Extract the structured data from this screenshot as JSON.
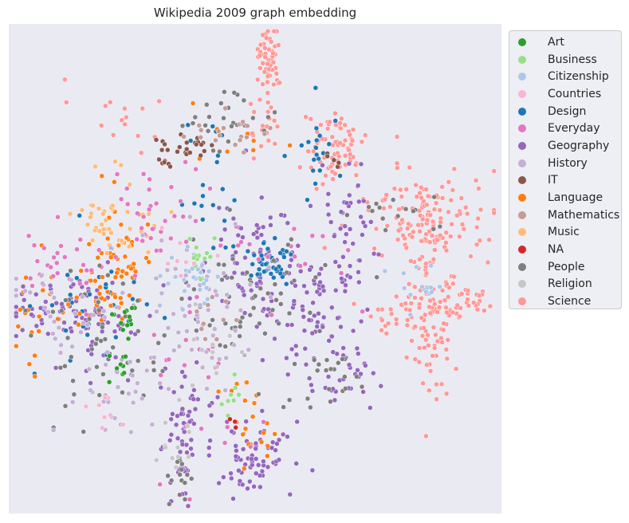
{
  "chart_data": {
    "type": "scatter",
    "title": "Wikipedia 2009 graph embedding",
    "xlabel": "",
    "ylabel": "",
    "grid": false,
    "axes_visible": false,
    "background_color": "#eaeaf2",
    "legend_placement": "outside-right",
    "point_edge_color": "#ffffff",
    "categories": [
      {
        "name": "Art",
        "color": "#2ca02c"
      },
      {
        "name": "Business",
        "color": "#98df8a"
      },
      {
        "name": "Citizenship",
        "color": "#aec7e8"
      },
      {
        "name": "Countries",
        "color": "#f7b6d2"
      },
      {
        "name": "Design",
        "color": "#1f77b4"
      },
      {
        "name": "Everyday",
        "color": "#e377c2"
      },
      {
        "name": "Geography",
        "color": "#9467bd"
      },
      {
        "name": "History",
        "color": "#c5b0d5"
      },
      {
        "name": "IT",
        "color": "#8c564b"
      },
      {
        "name": "Language",
        "color": "#ff7f0e"
      },
      {
        "name": "Mathematics",
        "color": "#c49c94"
      },
      {
        "name": "Music",
        "color": "#ffbb78"
      },
      {
        "name": "NA",
        "color": "#d62728"
      },
      {
        "name": "People",
        "color": "#7f7f7f"
      },
      {
        "name": "Religion",
        "color": "#c7c7c7"
      },
      {
        "name": "Science",
        "color": "#ff9896"
      }
    ],
    "clusters": [
      {
        "category": "Science",
        "x": 0.53,
        "y": 0.07,
        "sx": 0.012,
        "sy": 0.035,
        "n": 55
      },
      {
        "category": "Science",
        "x": 0.51,
        "y": 0.2,
        "sx": 0.02,
        "sy": 0.03,
        "n": 20
      },
      {
        "category": "Science",
        "x": 0.66,
        "y": 0.25,
        "sx": 0.03,
        "sy": 0.04,
        "n": 70
      },
      {
        "category": "Science",
        "x": 0.85,
        "y": 0.4,
        "sx": 0.06,
        "sy": 0.05,
        "n": 130
      },
      {
        "category": "Science",
        "x": 0.86,
        "y": 0.58,
        "sx": 0.03,
        "sy": 0.08,
        "n": 110
      },
      {
        "category": "Science",
        "x": 0.93,
        "y": 0.56,
        "sx": 0.03,
        "sy": 0.02,
        "n": 25
      },
      {
        "category": "Science",
        "x": 0.78,
        "y": 0.59,
        "sx": 0.03,
        "sy": 0.02,
        "n": 25
      },
      {
        "category": "Science",
        "x": 0.25,
        "y": 0.19,
        "sx": 0.06,
        "sy": 0.03,
        "n": 15
      },
      {
        "category": "Geography",
        "x": 0.51,
        "y": 0.5,
        "sx": 0.05,
        "sy": 0.06,
        "n": 80
      },
      {
        "category": "Geography",
        "x": 0.49,
        "y": 0.88,
        "sx": 0.04,
        "sy": 0.04,
        "n": 70
      },
      {
        "category": "Geography",
        "x": 0.36,
        "y": 0.8,
        "sx": 0.03,
        "sy": 0.06,
        "n": 50
      },
      {
        "category": "Geography",
        "x": 0.62,
        "y": 0.6,
        "sx": 0.04,
        "sy": 0.08,
        "n": 70
      },
      {
        "category": "Geography",
        "x": 0.68,
        "y": 0.44,
        "sx": 0.03,
        "sy": 0.08,
        "n": 50
      },
      {
        "category": "Geography",
        "x": 0.09,
        "y": 0.58,
        "sx": 0.05,
        "sy": 0.03,
        "n": 60
      },
      {
        "category": "Geography",
        "x": 0.35,
        "y": 0.92,
        "sx": 0.01,
        "sy": 0.04,
        "n": 15
      },
      {
        "category": "Geography",
        "x": 0.7,
        "y": 0.72,
        "sx": 0.04,
        "sy": 0.03,
        "n": 25
      },
      {
        "category": "Geography",
        "x": 0.2,
        "y": 0.6,
        "sx": 0.05,
        "sy": 0.07,
        "n": 40
      },
      {
        "category": "Design",
        "x": 0.53,
        "y": 0.49,
        "sx": 0.02,
        "sy": 0.02,
        "n": 40
      },
      {
        "category": "Design",
        "x": 0.41,
        "y": 0.34,
        "sx": 0.03,
        "sy": 0.07,
        "n": 20
      },
      {
        "category": "Design",
        "x": 0.62,
        "y": 0.25,
        "sx": 0.02,
        "sy": 0.05,
        "n": 20
      },
      {
        "category": "Design",
        "x": 0.18,
        "y": 0.58,
        "sx": 0.08,
        "sy": 0.06,
        "n": 30
      },
      {
        "category": "Language",
        "x": 0.23,
        "y": 0.48,
        "sx": 0.03,
        "sy": 0.06,
        "n": 45
      },
      {
        "category": "Language",
        "x": 0.18,
        "y": 0.54,
        "sx": 0.04,
        "sy": 0.05,
        "n": 30
      },
      {
        "category": "Language",
        "x": 0.49,
        "y": 0.82,
        "sx": 0.03,
        "sy": 0.04,
        "n": 20
      },
      {
        "category": "Language",
        "x": 0.06,
        "y": 0.6,
        "sx": 0.03,
        "sy": 0.05,
        "n": 15
      },
      {
        "category": "Language",
        "x": 0.45,
        "y": 0.25,
        "sx": 0.06,
        "sy": 0.03,
        "n": 8
      },
      {
        "category": "Music",
        "x": 0.22,
        "y": 0.4,
        "sx": 0.04,
        "sy": 0.05,
        "n": 35
      },
      {
        "category": "Music",
        "x": 0.17,
        "y": 0.4,
        "sx": 0.02,
        "sy": 0.02,
        "n": 10
      },
      {
        "category": "Everyday",
        "x": 0.3,
        "y": 0.38,
        "sx": 0.04,
        "sy": 0.06,
        "n": 35
      },
      {
        "category": "Everyday",
        "x": 0.1,
        "y": 0.49,
        "sx": 0.05,
        "sy": 0.04,
        "n": 30
      },
      {
        "category": "Everyday",
        "x": 0.4,
        "y": 0.7,
        "sx": 0.08,
        "sy": 0.1,
        "n": 25
      },
      {
        "category": "Everyday",
        "x": 0.62,
        "y": 0.45,
        "sx": 0.06,
        "sy": 0.06,
        "n": 15
      },
      {
        "category": "People",
        "x": 0.48,
        "y": 0.55,
        "sx": 0.09,
        "sy": 0.08,
        "n": 60
      },
      {
        "category": "People",
        "x": 0.18,
        "y": 0.65,
        "sx": 0.06,
        "sy": 0.07,
        "n": 50
      },
      {
        "category": "People",
        "x": 0.35,
        "y": 0.93,
        "sx": 0.02,
        "sy": 0.03,
        "n": 15
      },
      {
        "category": "People",
        "x": 0.66,
        "y": 0.73,
        "sx": 0.03,
        "sy": 0.03,
        "n": 20
      },
      {
        "category": "People",
        "x": 0.77,
        "y": 0.39,
        "sx": 0.05,
        "sy": 0.02,
        "n": 15
      },
      {
        "category": "People",
        "x": 0.45,
        "y": 0.2,
        "sx": 0.06,
        "sy": 0.04,
        "n": 25
      },
      {
        "category": "History",
        "x": 0.36,
        "y": 0.58,
        "sx": 0.06,
        "sy": 0.08,
        "n": 60
      },
      {
        "category": "History",
        "x": 0.1,
        "y": 0.57,
        "sx": 0.05,
        "sy": 0.05,
        "n": 30
      },
      {
        "category": "History",
        "x": 0.22,
        "y": 0.75,
        "sx": 0.05,
        "sy": 0.05,
        "n": 30
      },
      {
        "category": "Citizenship",
        "x": 0.38,
        "y": 0.52,
        "sx": 0.03,
        "sy": 0.03,
        "n": 30
      },
      {
        "category": "Citizenship",
        "x": 0.83,
        "y": 0.55,
        "sx": 0.02,
        "sy": 0.03,
        "n": 15
      },
      {
        "category": "IT",
        "x": 0.36,
        "y": 0.25,
        "sx": 0.03,
        "sy": 0.01,
        "n": 22
      },
      {
        "category": "IT",
        "x": 0.32,
        "y": 0.28,
        "sx": 0.01,
        "sy": 0.01,
        "n": 6
      },
      {
        "category": "IT",
        "x": 0.65,
        "y": 0.29,
        "sx": 0.01,
        "sy": 0.02,
        "n": 5
      },
      {
        "category": "Mathematics",
        "x": 0.46,
        "y": 0.22,
        "sx": 0.04,
        "sy": 0.02,
        "n": 20
      },
      {
        "category": "Mathematics",
        "x": 0.43,
        "y": 0.6,
        "sx": 0.03,
        "sy": 0.04,
        "n": 10
      },
      {
        "category": "Art",
        "x": 0.23,
        "y": 0.6,
        "sx": 0.02,
        "sy": 0.02,
        "n": 12
      },
      {
        "category": "Art",
        "x": 0.22,
        "y": 0.7,
        "sx": 0.02,
        "sy": 0.03,
        "n": 10
      },
      {
        "category": "Business",
        "x": 0.39,
        "y": 0.49,
        "sx": 0.02,
        "sy": 0.03,
        "n": 12
      },
      {
        "category": "Business",
        "x": 0.45,
        "y": 0.75,
        "sx": 0.01,
        "sy": 0.03,
        "n": 8
      },
      {
        "category": "NA",
        "x": 0.46,
        "y": 0.82,
        "sx": 0.01,
        "sy": 0.01,
        "n": 3
      },
      {
        "category": "Religion",
        "x": 0.34,
        "y": 0.87,
        "sx": 0.02,
        "sy": 0.04,
        "n": 12
      },
      {
        "category": "Religion",
        "x": 0.43,
        "y": 0.66,
        "sx": 0.03,
        "sy": 0.04,
        "n": 10
      },
      {
        "category": "Countries",
        "x": 0.2,
        "y": 0.78,
        "sx": 0.03,
        "sy": 0.03,
        "n": 8
      },
      {
        "category": "Countries",
        "x": 0.36,
        "y": 0.48,
        "sx": 0.03,
        "sy": 0.03,
        "n": 8
      }
    ]
  }
}
